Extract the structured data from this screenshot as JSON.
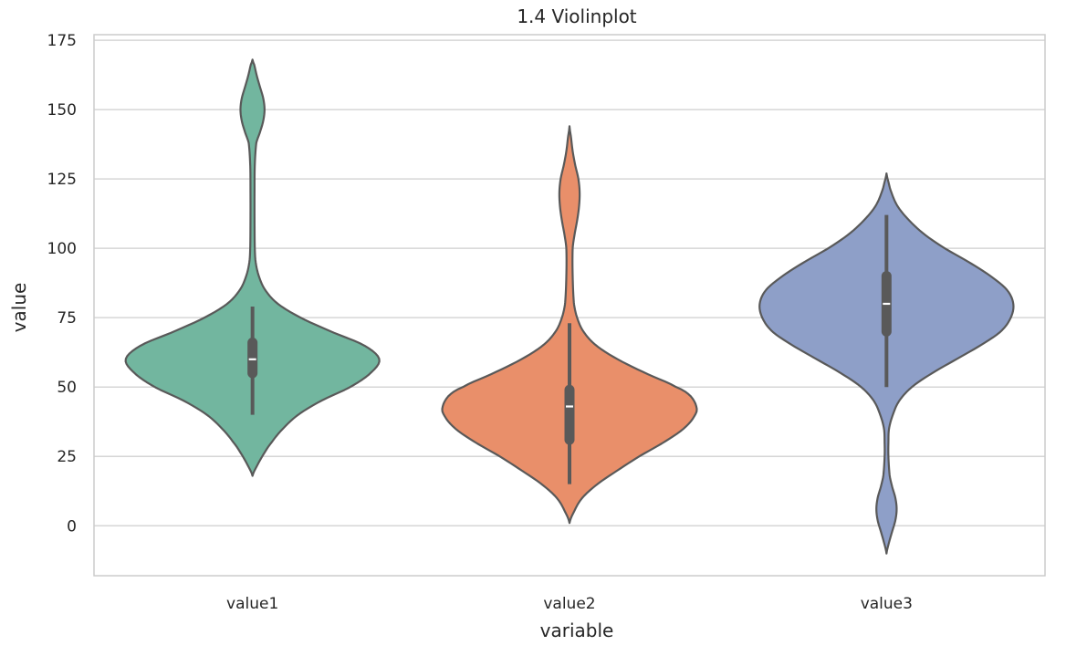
{
  "chart_data": {
    "type": "violin",
    "title": "1.4 Violinplot",
    "xlabel": "variable",
    "ylabel": "value",
    "ylim": [
      -18,
      177
    ],
    "yticks": [
      0,
      25,
      50,
      75,
      100,
      125,
      150,
      175
    ],
    "grid": true,
    "legend": "none",
    "categories": [
      "value1",
      "value2",
      "value3"
    ],
    "series": [
      {
        "category": "value1",
        "color": "#72b69f",
        "kde_extent": [
          18,
          168
        ],
        "box": {
          "whisker_low": 40,
          "q1": 55,
          "median": 60,
          "q3": 66,
          "whisker_high": 79
        },
        "density_profile": [
          [
            18,
            0.0
          ],
          [
            22,
            0.04
          ],
          [
            26,
            0.09
          ],
          [
            30,
            0.15
          ],
          [
            35,
            0.24
          ],
          [
            40,
            0.36
          ],
          [
            45,
            0.54
          ],
          [
            50,
            0.77
          ],
          [
            55,
            0.93
          ],
          [
            60,
            1.0
          ],
          [
            65,
            0.88
          ],
          [
            70,
            0.62
          ],
          [
            75,
            0.38
          ],
          [
            80,
            0.2
          ],
          [
            85,
            0.1
          ],
          [
            90,
            0.05
          ],
          [
            95,
            0.025
          ],
          [
            100,
            0.018
          ],
          [
            110,
            0.016
          ],
          [
            120,
            0.016
          ],
          [
            130,
            0.018
          ],
          [
            138,
            0.03
          ],
          [
            142,
            0.06
          ],
          [
            146,
            0.085
          ],
          [
            150,
            0.095
          ],
          [
            154,
            0.085
          ],
          [
            158,
            0.06
          ],
          [
            162,
            0.035
          ],
          [
            166,
            0.015
          ],
          [
            168,
            0.0
          ]
        ]
      },
      {
        "category": "value2",
        "color": "#e98f6a",
        "kde_extent": [
          1,
          144
        ],
        "box": {
          "whisker_low": 15,
          "q1": 31,
          "median": 43,
          "q3": 49,
          "whisker_high": 73
        },
        "density_profile": [
          [
            1,
            0.0
          ],
          [
            5,
            0.035
          ],
          [
            10,
            0.1
          ],
          [
            15,
            0.22
          ],
          [
            20,
            0.38
          ],
          [
            25,
            0.55
          ],
          [
            30,
            0.74
          ],
          [
            35,
            0.9
          ],
          [
            40,
            0.99
          ],
          [
            43,
            1.0
          ],
          [
            47,
            0.95
          ],
          [
            50,
            0.84
          ],
          [
            55,
            0.6
          ],
          [
            60,
            0.38
          ],
          [
            65,
            0.21
          ],
          [
            70,
            0.11
          ],
          [
            75,
            0.06
          ],
          [
            80,
            0.035
          ],
          [
            90,
            0.025
          ],
          [
            100,
            0.025
          ],
          [
            105,
            0.04
          ],
          [
            110,
            0.06
          ],
          [
            115,
            0.075
          ],
          [
            120,
            0.08
          ],
          [
            125,
            0.07
          ],
          [
            130,
            0.045
          ],
          [
            135,
            0.025
          ],
          [
            140,
            0.012
          ],
          [
            144,
            0.0
          ]
        ]
      },
      {
        "category": "value3",
        "color": "#8e9fc8",
        "kde_extent": [
          -10,
          127
        ],
        "box": {
          "whisker_low": 50,
          "q1": 70,
          "median": 80,
          "q3": 90,
          "whisker_high": 112
        },
        "density_profile": [
          [
            -10,
            0.0
          ],
          [
            -6,
            0.02
          ],
          [
            -2,
            0.045
          ],
          [
            2,
            0.07
          ],
          [
            6,
            0.08
          ],
          [
            10,
            0.07
          ],
          [
            14,
            0.045
          ],
          [
            18,
            0.025
          ],
          [
            25,
            0.015
          ],
          [
            30,
            0.015
          ],
          [
            35,
            0.02
          ],
          [
            40,
            0.05
          ],
          [
            45,
            0.1
          ],
          [
            50,
            0.2
          ],
          [
            55,
            0.36
          ],
          [
            60,
            0.55
          ],
          [
            65,
            0.74
          ],
          [
            70,
            0.9
          ],
          [
            75,
            0.98
          ],
          [
            80,
            1.0
          ],
          [
            85,
            0.95
          ],
          [
            90,
            0.82
          ],
          [
            95,
            0.65
          ],
          [
            100,
            0.46
          ],
          [
            105,
            0.3
          ],
          [
            110,
            0.18
          ],
          [
            115,
            0.09
          ],
          [
            120,
            0.04
          ],
          [
            124,
            0.015
          ],
          [
            127,
            0.0
          ]
        ]
      }
    ]
  }
}
